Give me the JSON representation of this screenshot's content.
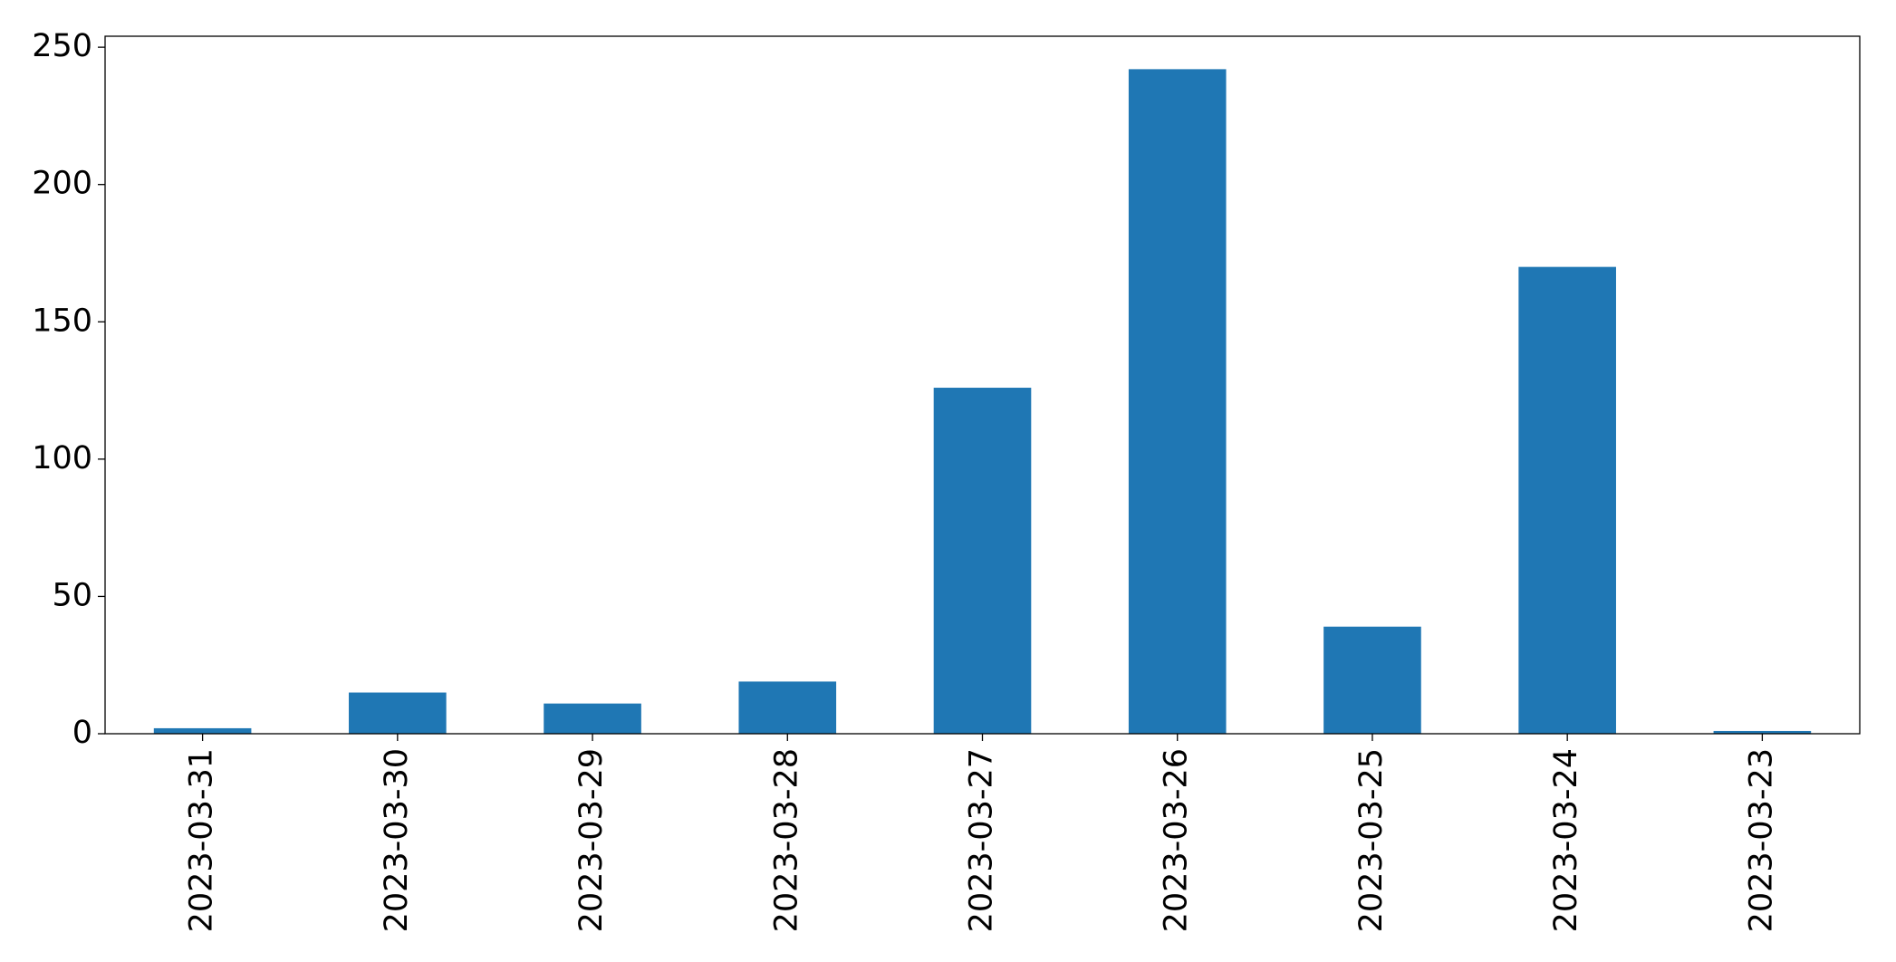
{
  "chart_data": {
    "type": "bar",
    "categories": [
      "2023-03-31",
      "2023-03-30",
      "2023-03-29",
      "2023-03-28",
      "2023-03-27",
      "2023-03-26",
      "2023-03-25",
      "2023-03-24",
      "2023-03-23"
    ],
    "values": [
      2,
      15,
      11,
      19,
      126,
      242,
      39,
      170,
      1
    ],
    "color": "#1f77b4",
    "ylim": [
      0,
      254
    ],
    "yticks": [
      0,
      50,
      100,
      150,
      200,
      250
    ],
    "grid": false
  }
}
